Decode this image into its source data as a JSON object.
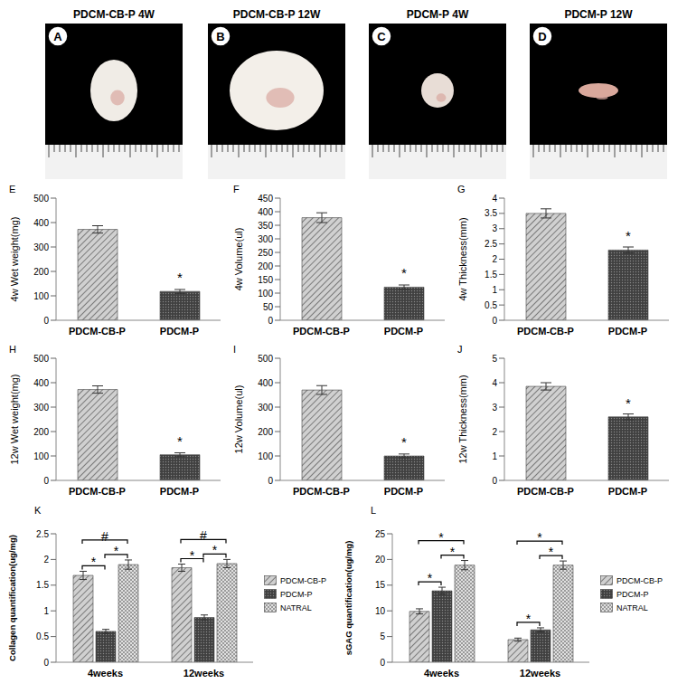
{
  "photos": [
    {
      "panel": "A",
      "label": "PDCM-CB-P 4W"
    },
    {
      "panel": "B",
      "label": "PDCM-CB-P 12W"
    },
    {
      "panel": "C",
      "label": "PDCM-P 4W"
    },
    {
      "panel": "D",
      "label": "PDCM-P 12W"
    }
  ],
  "chart_data": [
    {
      "type": "bar",
      "panel": "E",
      "y_label": "4w Wet weight(mg)",
      "categories": [
        "PDCM-CB-P",
        "PDCM-P"
      ],
      "values": [
        372,
        118
      ],
      "errors": [
        15,
        8
      ],
      "significance": [
        null,
        "*"
      ],
      "colors": [
        "#d0d0d0",
        "#404040"
      ],
      "ylim": [
        0,
        500
      ],
      "yticks": [
        0,
        100,
        200,
        300,
        400,
        500
      ],
      "grid": false
    },
    {
      "type": "bar",
      "panel": "F",
      "y_label": "4w Volume(ul)",
      "categories": [
        "PDCM-CB-P",
        "PDCM-P"
      ],
      "values": [
        378,
        122
      ],
      "errors": [
        18,
        8
      ],
      "significance": [
        null,
        "*"
      ],
      "colors": [
        "#d0d0d0",
        "#404040"
      ],
      "ylim": [
        0,
        450
      ],
      "yticks": [
        0,
        50,
        100,
        150,
        200,
        250,
        300,
        350,
        400,
        450
      ],
      "grid": false
    },
    {
      "type": "bar",
      "panel": "G",
      "y_label": "4w Thickness(mm)",
      "categories": [
        "PDCM-CB-P",
        "PDCM-P"
      ],
      "values": [
        3.5,
        2.3
      ],
      "errors": [
        0.15,
        0.1
      ],
      "significance": [
        null,
        "*"
      ],
      "colors": [
        "#d0d0d0",
        "#404040"
      ],
      "ylim": [
        0,
        4
      ],
      "yticks": [
        0,
        0.5,
        1,
        1.5,
        2,
        2.5,
        3,
        3.5,
        4
      ],
      "grid": false
    },
    {
      "type": "bar",
      "panel": "H",
      "y_label": "12w Wet weight(mg)",
      "categories": [
        "PDCM-CB-P",
        "PDCM-P"
      ],
      "values": [
        372,
        105
      ],
      "errors": [
        15,
        8
      ],
      "significance": [
        null,
        "*"
      ],
      "colors": [
        "#d0d0d0",
        "#404040"
      ],
      "ylim": [
        0,
        500
      ],
      "yticks": [
        0,
        100,
        200,
        300,
        400,
        500
      ],
      "grid": false
    },
    {
      "type": "bar",
      "panel": "I",
      "y_label": "12w Volume(ul)",
      "categories": [
        "PDCM-CB-P",
        "PDCM-P"
      ],
      "values": [
        370,
        100
      ],
      "errors": [
        18,
        8
      ],
      "significance": [
        null,
        "*"
      ],
      "colors": [
        "#d0d0d0",
        "#404040"
      ],
      "ylim": [
        0,
        500
      ],
      "yticks": [
        0,
        100,
        200,
        300,
        400,
        500
      ],
      "grid": false
    },
    {
      "type": "bar",
      "panel": "J",
      "y_label": "12w Thickness(mm)",
      "categories": [
        "PDCM-CB-P",
        "PDCM-P"
      ],
      "values": [
        3.85,
        2.6
      ],
      "errors": [
        0.15,
        0.12
      ],
      "significance": [
        null,
        "*"
      ],
      "colors": [
        "#d0d0d0",
        "#404040"
      ],
      "ylim": [
        0,
        5
      ],
      "yticks": [
        0,
        1,
        2,
        3,
        4,
        5
      ],
      "grid": false
    },
    {
      "type": "bar",
      "panel": "K",
      "y_label": "Collagen quantification(ug/mg)",
      "categories": [
        "4weeks",
        "12weeks"
      ],
      "series": [
        {
          "name": "PDCM-CB-P",
          "color": "#d0d0d0",
          "values": [
            1.69,
            1.84
          ],
          "errors": [
            0.08,
            0.07
          ]
        },
        {
          "name": "PDCM-P",
          "color": "#404040",
          "values": [
            0.6,
            0.87
          ],
          "errors": [
            0.04,
            0.05
          ]
        },
        {
          "name": "NATRAL",
          "color": "#e0e0e0",
          "values": [
            1.9,
            1.92
          ],
          "errors": [
            0.09,
            0.08
          ]
        }
      ],
      "significance": [
        {
          "category": "4weeks",
          "from": "PDCM-CB-P",
          "to": "PDCM-P",
          "label": "*"
        },
        {
          "category": "4weeks",
          "from": "PDCM-P",
          "to": "NATRAL",
          "label": "*"
        },
        {
          "category": "4weeks",
          "from": "PDCM-CB-P",
          "to": "NATRAL",
          "label": "#"
        },
        {
          "category": "12weeks",
          "from": "PDCM-CB-P",
          "to": "PDCM-P",
          "label": "*"
        },
        {
          "category": "12weeks",
          "from": "PDCM-P",
          "to": "NATRAL",
          "label": "*"
        },
        {
          "category": "12weeks",
          "from": "PDCM-CB-P",
          "to": "NATRAL",
          "label": "#"
        }
      ],
      "ylim": [
        0,
        2.5
      ],
      "yticks": [
        0,
        0.5,
        1,
        1.5,
        2,
        2.5
      ],
      "legend": "right",
      "grid": false
    },
    {
      "type": "bar",
      "panel": "L",
      "y_label": "sGAG quantification(ug/mg)",
      "categories": [
        "4weeks",
        "12weeks"
      ],
      "series": [
        {
          "name": "PDCM-CB-P",
          "color": "#d0d0d0",
          "values": [
            9.9,
            4.4
          ],
          "errors": [
            0.5,
            0.3
          ]
        },
        {
          "name": "PDCM-P",
          "color": "#404040",
          "values": [
            13.9,
            6.3
          ],
          "errors": [
            0.7,
            0.4
          ]
        },
        {
          "name": "NATRAL",
          "color": "#e0e0e0",
          "values": [
            18.9,
            18.9
          ],
          "errors": [
            0.9,
            0.8
          ]
        }
      ],
      "significance": [
        {
          "category": "4weeks",
          "from": "PDCM-CB-P",
          "to": "PDCM-P",
          "label": "*"
        },
        {
          "category": "4weeks",
          "from": "PDCM-P",
          "to": "NATRAL",
          "label": "*"
        },
        {
          "category": "4weeks",
          "from": "PDCM-CB-P",
          "to": "NATRAL",
          "label": "*"
        },
        {
          "category": "12weeks",
          "from": "PDCM-CB-P",
          "to": "PDCM-P",
          "label": "*"
        },
        {
          "category": "12weeks",
          "from": "PDCM-P",
          "to": "NATRAL",
          "label": "*"
        },
        {
          "category": "12weeks",
          "from": "PDCM-CB-P",
          "to": "NATRAL",
          "label": "*"
        }
      ],
      "ylim": [
        0,
        25
      ],
      "yticks": [
        0,
        5,
        10,
        15,
        20,
        25
      ],
      "legend": "right",
      "grid": false
    }
  ]
}
